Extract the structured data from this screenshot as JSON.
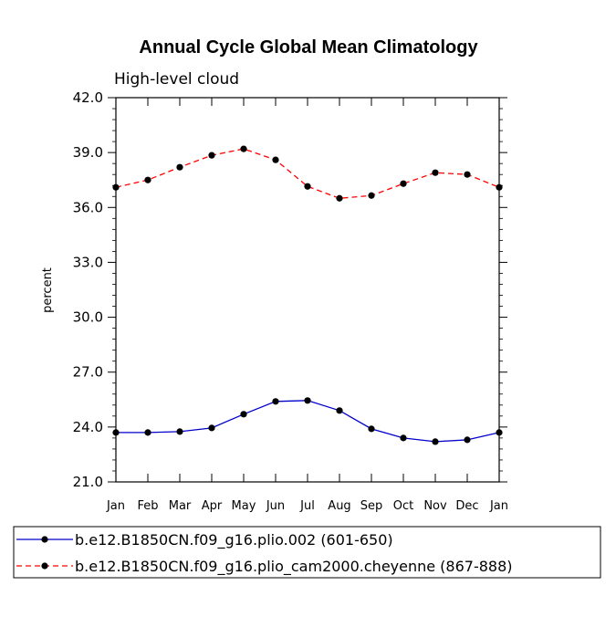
{
  "chart_data": {
    "type": "line",
    "title": "Annual Cycle Global Mean Climatology",
    "subtitle": "High-level cloud",
    "xlabel": "",
    "ylabel": "percent",
    "ylim": [
      21.0,
      42.0
    ],
    "yticks": [
      "21.0",
      "24.0",
      "27.0",
      "30.0",
      "33.0",
      "36.0",
      "39.0",
      "42.0"
    ],
    "categories": [
      "Jan",
      "Feb",
      "Mar",
      "Apr",
      "May",
      "Jun",
      "Jul",
      "Aug",
      "Sep",
      "Oct",
      "Nov",
      "Dec",
      "Jan"
    ],
    "series": [
      {
        "name": "b.e12.B1850CN.f09_g16.plio.002 (601-650)",
        "color": "#0000cc",
        "dash": "solid",
        "values": [
          23.7,
          23.7,
          23.75,
          23.95,
          24.7,
          25.4,
          25.45,
          24.9,
          23.9,
          23.4,
          23.2,
          23.3,
          23.7
        ]
      },
      {
        "name": "b.e12.B1850CN.f09_g16.plio_cam2000.cheyenne (867-888)",
        "color": "#ff0000",
        "dash": "dashed",
        "values": [
          37.1,
          37.5,
          38.2,
          38.85,
          39.2,
          38.6,
          37.15,
          36.5,
          36.65,
          37.3,
          37.9,
          37.8,
          37.1
        ]
      }
    ]
  }
}
